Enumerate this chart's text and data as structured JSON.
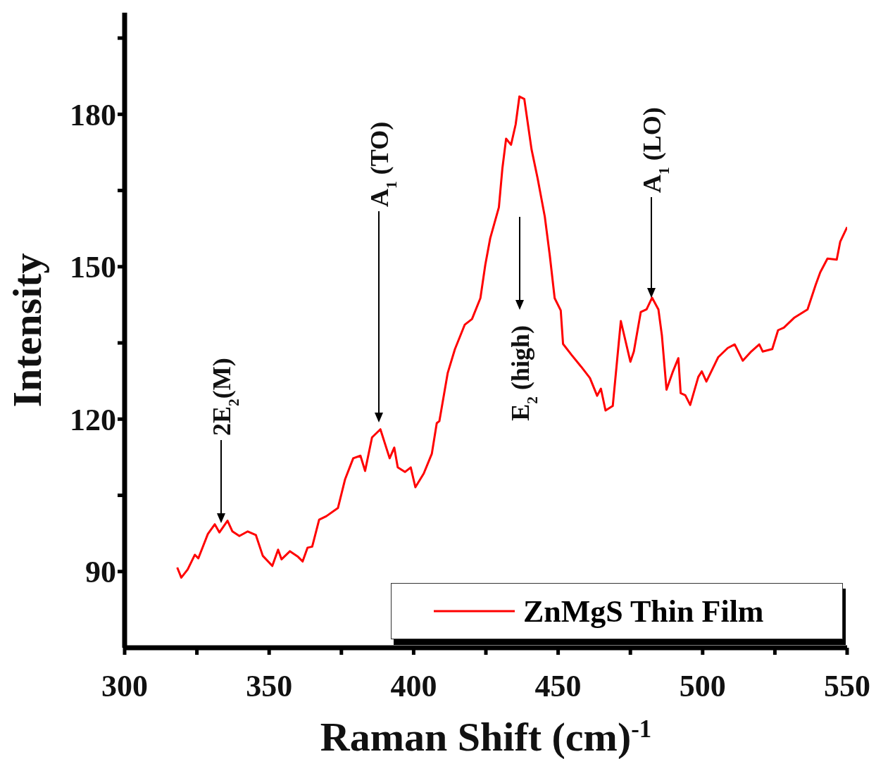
{
  "chart_data": {
    "type": "line",
    "xlabel": "Raman Shift (cm)$^{-1}$",
    "ylabel": "Intensity",
    "x": [
      318.2,
      319.6,
      321.8,
      324.3,
      325.5,
      328.8,
      331.2,
      332.8,
      335.6,
      337.3,
      339.7,
      342.6,
      345.4,
      347.8,
      351.1,
      353.1,
      354.3,
      357.2,
      360.0,
      361.6,
      363.3,
      364.9,
      367.3,
      369.8,
      373.8,
      376.3,
      379.1,
      381.6,
      383.2,
      385.6,
      388.5,
      391.7,
      393.3,
      394.5,
      397.0,
      399.0,
      400.6,
      403.5,
      406.3,
      408.0,
      408.9,
      411.8,
      414.3,
      417.7,
      420.2,
      423.1,
      424.8,
      426.5,
      429.5,
      430.7,
      432.0,
      433.7,
      435.3,
      436.6,
      438.3,
      440.8,
      442.9,
      445.4,
      447.1,
      448.8,
      450.9,
      451.7,
      454.7,
      458.0,
      461.0,
      463.5,
      464.8,
      466.4,
      468.9,
      471.7,
      475.0,
      476.2,
      478.6,
      480.6,
      482.5,
      484.7,
      485.9,
      487.5,
      489.6,
      491.6,
      492.4,
      494.0,
      495.7,
      498.5,
      499.7,
      501.3,
      505.4,
      508.7,
      511.1,
      513.9,
      516.8,
      519.6,
      520.8,
      524.1,
      526.1,
      528.1,
      531.8,
      536.3,
      539.1,
      540.7,
      543.2,
      546.4,
      547.6,
      550.0
    ],
    "series": [
      {
        "name": "ZnMgS Thin Film",
        "color": "#ff0000",
        "values": [
          90.8,
          88.8,
          90.4,
          93.3,
          92.6,
          97.4,
          99.3,
          97.7,
          100.0,
          97.9,
          97.0,
          97.9,
          97.2,
          93.1,
          91.1,
          94.3,
          92.4,
          94.0,
          92.9,
          92.0,
          94.7,
          94.9,
          100.2,
          100.9,
          102.5,
          108.2,
          112.3,
          112.8,
          109.8,
          116.4,
          118.0,
          112.3,
          114.4,
          110.5,
          109.6,
          110.5,
          106.6,
          109.3,
          113.2,
          119.2,
          119.6,
          129.1,
          133.8,
          138.6,
          139.7,
          143.8,
          150.4,
          155.6,
          161.7,
          169.3,
          175.2,
          174.0,
          178.0,
          183.5,
          183.0,
          173.1,
          167.4,
          159.8,
          152.3,
          143.8,
          141.4,
          134.8,
          132.6,
          130.3,
          128.1,
          124.6,
          126.0,
          121.7,
          122.6,
          139.3,
          131.3,
          133.3,
          141.1,
          141.6,
          143.9,
          141.6,
          136.5,
          125.8,
          129.2,
          132.0,
          125.1,
          124.7,
          122.8,
          128.3,
          129.4,
          127.4,
          132.2,
          134.0,
          134.7,
          131.5,
          133.3,
          134.7,
          133.3,
          133.8,
          137.5,
          138.0,
          140.0,
          141.6,
          146.4,
          148.9,
          151.6,
          151.4,
          154.9,
          157.8
        ]
      }
    ],
    "xlim": [
      300,
      550
    ],
    "xticks": [
      300,
      {
        "value": 325,
        "label": null
      },
      350,
      {
        "value": 375,
        "label": null
      },
      400,
      {
        "value": 425,
        "label": null
      },
      450,
      {
        "value": 475,
        "label": null
      },
      500,
      {
        "value": 525,
        "label": null
      },
      550
    ],
    "ylim": [
      75,
      200
    ],
    "yticks": [
      90,
      {
        "value": 105,
        "label": null
      },
      120,
      {
        "value": 135,
        "label": null
      },
      150,
      {
        "value": 165,
        "label": null
      },
      180,
      {
        "value": 195,
        "label": null
      }
    ],
    "annotations": [
      "2E$_{2}$(M)",
      "A$_{1}$ (TO)",
      "E$_{2}$ (high)",
      "A$_{1}$ (LO)"
    ],
    "legend": "bottom right",
    "grid": false,
    "line_style": "solid"
  }
}
